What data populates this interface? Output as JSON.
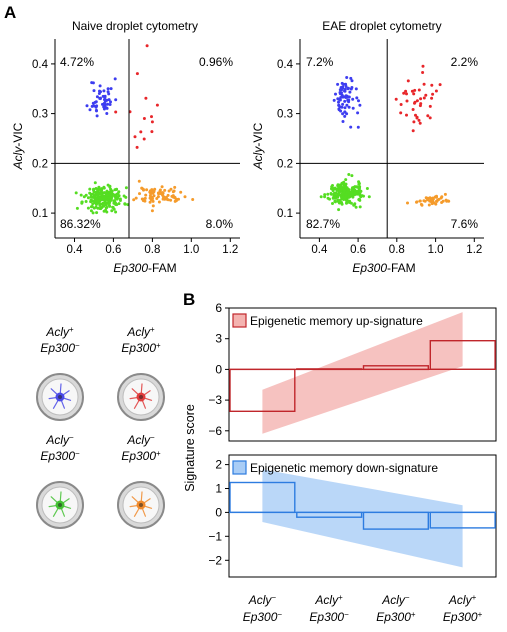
{
  "panel_labels": {
    "a": "A",
    "b": "B"
  },
  "scatter_common": {
    "xlabel_italic": "Ep300",
    "xlabel_rest": "-FAM",
    "ylabel_italic": "Acly",
    "ylabel_rest": "-VIC",
    "x_ticks": [
      "0.4",
      "0.6",
      "0.8",
      "1.0",
      "1.2"
    ],
    "y_ticks": [
      "0.1",
      "0.2",
      "0.3",
      "0.4"
    ]
  },
  "legend_cells": [
    {
      "acly": "Acly",
      "acly_sign": "+",
      "ep300": "Ep300",
      "ep300_sign": "−",
      "color": "#4a4ae8"
    },
    {
      "acly": "Acly",
      "acly_sign": "+",
      "ep300": "Ep300",
      "ep300_sign": "+",
      "color": "#e03c3c"
    },
    {
      "acly": "Acly",
      "acly_sign": "−",
      "ep300": "Ep300",
      "ep300_sign": "−",
      "color": "#44c233"
    },
    {
      "acly": "Acly",
      "acly_sign": "−",
      "ep300": "Ep300",
      "ep300_sign": "+",
      "color": "#f08a2c"
    }
  ],
  "signature_ylabel": "Signature score",
  "chart_data": [
    {
      "type": "scatter",
      "title": "Naive droplet cytometry",
      "xlabel": "Ep300-FAM",
      "ylabel": "Acly-VIC",
      "xlim": [
        0.3,
        1.25
      ],
      "ylim": [
        0.05,
        0.45
      ],
      "threshold_x": 0.68,
      "threshold_y": 0.2,
      "quadrant_percents": {
        "top_left": "4.72%",
        "top_right": "0.96%",
        "bottom_left": "86.32%",
        "bottom_right": "8.0%"
      },
      "clusters": [
        {
          "name": "Acly+ Ep300−",
          "color": "#3d3df0",
          "cx": 0.54,
          "cy": 0.33,
          "sx": 0.03,
          "sy": 0.02,
          "n": 50
        },
        {
          "name": "Acly+ Ep300+",
          "color": "#e8262a",
          "cx": 0.76,
          "cy": 0.3,
          "sx": 0.06,
          "sy": 0.05,
          "n": 14
        },
        {
          "name": "Acly− Ep300−",
          "color": "#55dd22",
          "cx": 0.55,
          "cy": 0.13,
          "sx": 0.05,
          "sy": 0.012,
          "n": 220
        },
        {
          "name": "Acly− Ep300+",
          "color": "#f59b2b",
          "cx": 0.84,
          "cy": 0.135,
          "sx": 0.06,
          "sy": 0.01,
          "n": 80
        }
      ]
    },
    {
      "type": "scatter",
      "title": "EAE droplet cytometry",
      "xlabel": "Ep300-FAM",
      "ylabel": "Acly-VIC",
      "xlim": [
        0.3,
        1.25
      ],
      "ylim": [
        0.05,
        0.45
      ],
      "threshold_x": 0.75,
      "threshold_y": 0.2,
      "quadrant_percents": {
        "top_left": "7.2%",
        "top_right": "2.2%",
        "bottom_left": "82.7%",
        "bottom_right": "7.6%"
      },
      "clusters": [
        {
          "name": "Acly+ Ep300−",
          "color": "#3d3df0",
          "cx": 0.53,
          "cy": 0.33,
          "sx": 0.03,
          "sy": 0.022,
          "n": 70
        },
        {
          "name": "Acly+ Ep300+",
          "color": "#e8262a",
          "cx": 0.9,
          "cy": 0.33,
          "sx": 0.05,
          "sy": 0.025,
          "n": 40
        },
        {
          "name": "Acly− Ep300−",
          "color": "#55dd22",
          "cx": 0.53,
          "cy": 0.14,
          "sx": 0.045,
          "sy": 0.011,
          "n": 210
        },
        {
          "name": "Acly− Ep300+",
          "color": "#f59b2b",
          "cx": 0.99,
          "cy": 0.125,
          "sx": 0.05,
          "sy": 0.006,
          "n": 50
        }
      ]
    },
    {
      "type": "bar",
      "ylabel": "Signature score",
      "categories": [
        {
          "acly_sign": "−",
          "ep300_sign": "−"
        },
        {
          "acly_sign": "+",
          "ep300_sign": "−"
        },
        {
          "acly_sign": "−",
          "ep300_sign": "+"
        },
        {
          "acly_sign": "+",
          "ep300_sign": "+"
        }
      ],
      "category_text": {
        "acly": "Acly",
        "ep300": "Ep300"
      },
      "panels": [
        {
          "legend": "Epigenetic memory up-signature",
          "stroke": "#c0262b",
          "fill": "#f4b3b0",
          "ylim": [
            -7,
            6
          ],
          "ticks": [
            "6",
            "3",
            "0",
            "−3",
            "−6"
          ],
          "tick_values": [
            6,
            3,
            0,
            -3,
            -6
          ],
          "values": [
            -4.1,
            0.05,
            0.35,
            2.8
          ],
          "band_x": [
            0.5,
            3.5
          ],
          "band_low": [
            -6.3,
            0.3
          ],
          "band_high": [
            -2.0,
            5.6
          ]
        },
        {
          "legend": "Epigenetic memory down-signature",
          "stroke": "#2d7ce0",
          "fill": "#a9cdf6",
          "ylim": [
            -2.7,
            2.4
          ],
          "ticks": [
            "2",
            "1",
            "0",
            "−1",
            "−2"
          ],
          "tick_values": [
            2,
            1,
            0,
            -1,
            -2
          ],
          "values": [
            1.25,
            -0.2,
            -0.7,
            -0.65
          ],
          "band_x": [
            0.5,
            3.5
          ],
          "band_low": [
            -0.4,
            -2.3
          ],
          "band_high": [
            1.8,
            0.3
          ]
        }
      ]
    }
  ]
}
